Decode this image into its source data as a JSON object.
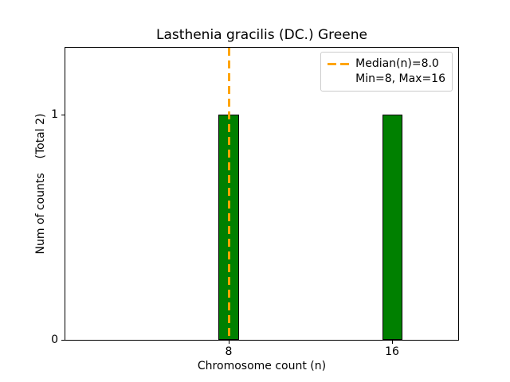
{
  "chart_data": {
    "type": "bar",
    "title": "Lasthenia gracilis (DC.) Greene",
    "xlabel": "Chromosome count (n)",
    "ylabel": "Num of counts    (Total 2)",
    "categories": [
      8,
      16
    ],
    "values": [
      1,
      1
    ],
    "total_counts": 2,
    "bar_width": 1.0,
    "bar_color": "#008000",
    "bar_edge_color": "#000000",
    "xlim": [
      0,
      19.3
    ],
    "ylim": [
      0,
      1.295
    ],
    "xticks": [
      8,
      16
    ],
    "yticks": [
      0,
      1
    ],
    "grid": false,
    "median_line": {
      "x": 8.0,
      "color": "#FFA500",
      "style": "dashed"
    },
    "legend": {
      "position": "upper right",
      "entries": [
        {
          "label": "Median(n)=8.0",
          "marker": "dashed-line",
          "color": "#FFA500"
        },
        {
          "label": "Min=8, Max=16",
          "marker": "none",
          "color": ""
        }
      ]
    }
  }
}
